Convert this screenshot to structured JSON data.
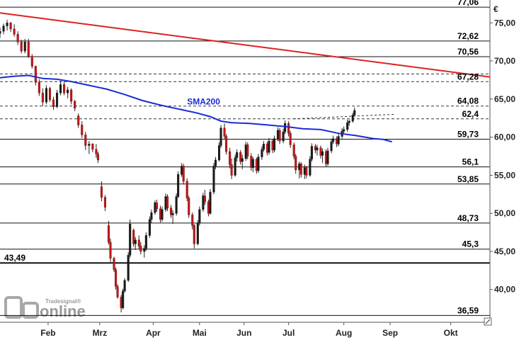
{
  "chart_data": {
    "type": "candlestick",
    "currency_label": "€",
    "y_axis": {
      "range": [
        35.7,
        78.0
      ],
      "ticks": [
        "75,00",
        "70,00",
        "65,00",
        "60,00",
        "55,00",
        "50,00",
        "45,00",
        "40,00"
      ],
      "tick_values": [
        75,
        70,
        65,
        60,
        55,
        50,
        45,
        40
      ],
      "side": "right"
    },
    "x_axis": {
      "range": [
        0,
        275
      ],
      "ticks": [
        "Feb",
        "Mrz",
        "Apr",
        "Mai",
        "Jun",
        "Jul",
        "Aug",
        "Sep",
        "Okt"
      ],
      "tick_positions": [
        27,
        56,
        86,
        112,
        137,
        162,
        193,
        219,
        253
      ]
    },
    "levels": [
      {
        "value": 77.06,
        "label": "77,06",
        "style": "solid"
      },
      {
        "value": 72.62,
        "label": "72,62",
        "style": "solid"
      },
      {
        "value": 70.56,
        "label": "70,56",
        "style": "solid"
      },
      {
        "value": 67.28,
        "label": "67,28",
        "style": "dashed"
      },
      {
        "value": 64.08,
        "label": "64,08",
        "style": "dashed"
      },
      {
        "value": 62.4,
        "label": "62,4",
        "style": "dashed"
      },
      {
        "value": 59.73,
        "label": "59,73",
        "style": "solid"
      },
      {
        "value": 56.1,
        "label": "56,1",
        "style": "solid"
      },
      {
        "value": 53.85,
        "label": "53,85",
        "style": "solid"
      },
      {
        "value": 48.73,
        "label": "48,73",
        "style": "solid"
      },
      {
        "value": 45.3,
        "label": "45,3",
        "style": "solid"
      },
      {
        "value": 43.49,
        "label": "43,49",
        "style": "bold"
      },
      {
        "value": 36.59,
        "label": "36,59",
        "style": "solid"
      }
    ],
    "trendline": {
      "color": "#e02020",
      "points": [
        [
          0,
          76.3
        ],
        [
          275,
          67.9
        ]
      ]
    },
    "upper_dashed_line": {
      "points": [
        [
          0,
          68.3
        ],
        [
          275,
          68.3
        ]
      ]
    },
    "projection_line": {
      "points": [
        [
          165,
          62.4
        ],
        [
          222,
          63.0
        ]
      ]
    },
    "sma200": {
      "name": "SMA200",
      "color": "#1a2bd6",
      "label_at": [
        105,
        64.3
      ],
      "points": [
        [
          0,
          67.8
        ],
        [
          8,
          68.0
        ],
        [
          16,
          68.1
        ],
        [
          24,
          67.7
        ],
        [
          32,
          67.6
        ],
        [
          40,
          67.3
        ],
        [
          50,
          66.8
        ],
        [
          60,
          66.3
        ],
        [
          70,
          65.6
        ],
        [
          80,
          64.8
        ],
        [
          90,
          64.2
        ],
        [
          100,
          63.7
        ],
        [
          110,
          63.2
        ],
        [
          118,
          62.7
        ],
        [
          124,
          62.1
        ],
        [
          130,
          61.9
        ],
        [
          140,
          61.8
        ],
        [
          150,
          61.6
        ],
        [
          160,
          61.4
        ],
        [
          170,
          61.1
        ],
        [
          180,
          61.0
        ],
        [
          190,
          60.5
        ],
        [
          200,
          60.2
        ],
        [
          210,
          59.8
        ],
        [
          215,
          59.7
        ],
        [
          220,
          59.4
        ]
      ]
    },
    "candles": [
      [
        0,
        73.6,
        74.4,
        73.0,
        73.9
      ],
      [
        2,
        73.9,
        74.9,
        73.5,
        74.6
      ],
      [
        4,
        74.6,
        75.4,
        74.0,
        75.0
      ],
      [
        6,
        75.0,
        75.1,
        73.8,
        74.2
      ],
      [
        8,
        74.2,
        74.8,
        73.2,
        73.5
      ],
      [
        10,
        73.5,
        73.9,
        72.1,
        72.5
      ],
      [
        12,
        72.5,
        72.8,
        71.0,
        71.3
      ],
      [
        14,
        71.3,
        72.9,
        71.0,
        72.5
      ],
      [
        16,
        72.5,
        72.9,
        70.4,
        70.6
      ],
      [
        18,
        70.6,
        70.9,
        69.0,
        69.3
      ],
      [
        20,
        69.3,
        69.4,
        66.8,
        67.2
      ],
      [
        22,
        67.2,
        67.6,
        65.4,
        65.8
      ],
      [
        24,
        65.8,
        66.4,
        64.1,
        64.6
      ],
      [
        26,
        64.6,
        66.8,
        64.3,
        66.4
      ],
      [
        28,
        66.4,
        66.6,
        64.6,
        64.9
      ],
      [
        30,
        64.9,
        65.3,
        63.6,
        64.0
      ],
      [
        32,
        64.0,
        66.2,
        63.8,
        65.8
      ],
      [
        34,
        65.8,
        67.4,
        65.5,
        66.9
      ],
      [
        36,
        66.9,
        67.3,
        65.5,
        65.8
      ],
      [
        38,
        65.8,
        66.6,
        65.1,
        66.2
      ],
      [
        40,
        66.2,
        66.4,
        64.3,
        64.7
      ],
      [
        42,
        64.7,
        64.9,
        63.4,
        63.8
      ],
      [
        44,
        62.8,
        63.1,
        61.2,
        61.6
      ],
      [
        46,
        61.6,
        62.1,
        59.9,
        60.3
      ],
      [
        48,
        60.3,
        60.7,
        58.3,
        58.9
      ],
      [
        50,
        58.9,
        59.5,
        57.8,
        59.1
      ],
      [
        52,
        59.1,
        59.2,
        58.0,
        58.4
      ],
      [
        54,
        58.4,
        59.1,
        57.3,
        57.8
      ],
      [
        55,
        57.8,
        58.1,
        56.6,
        57.0
      ],
      [
        57,
        53.5,
        54.2,
        51.6,
        52.1
      ],
      [
        59,
        52.1,
        52.4,
        50.3,
        50.8
      ],
      [
        61,
        48.4,
        49.0,
        45.9,
        46.2
      ],
      [
        62,
        46.2,
        46.7,
        43.6,
        44.1
      ],
      [
        64,
        44.1,
        44.3,
        42.3,
        42.6
      ],
      [
        65,
        42.6,
        42.9,
        40.0,
        40.4
      ],
      [
        66,
        40.4,
        40.7,
        38.8,
        39.0
      ],
      [
        68,
        39.0,
        39.3,
        37.0,
        37.6
      ],
      [
        69,
        37.6,
        40.1,
        37.4,
        39.8
      ],
      [
        70,
        39.8,
        41.5,
        39.6,
        41.2
      ],
      [
        72,
        41.2,
        44.9,
        41.0,
        44.5
      ],
      [
        73,
        44.5,
        49.2,
        44.2,
        48.6
      ],
      [
        75,
        47.8,
        48.0,
        45.6,
        46.0
      ],
      [
        76,
        46.0,
        46.9,
        45.2,
        46.5
      ],
      [
        78,
        46.5,
        47.1,
        45.3,
        45.7
      ],
      [
        79,
        45.7,
        46.2,
        44.6,
        45.0
      ],
      [
        81,
        45.0,
        45.8,
        44.2,
        45.4
      ],
      [
        82,
        45.4,
        47.5,
        45.1,
        47.1
      ],
      [
        84,
        47.1,
        49.6,
        46.8,
        49.2
      ],
      [
        85,
        49.2,
        50.5,
        48.7,
        50.1
      ],
      [
        87,
        50.1,
        51.7,
        49.8,
        51.4
      ],
      [
        88,
        51.4,
        51.8,
        50.2,
        50.6
      ],
      [
        90,
        50.6,
        51.0,
        48.8,
        49.2
      ],
      [
        91,
        49.2,
        50.9,
        48.9,
        50.5
      ],
      [
        93,
        50.5,
        52.6,
        50.2,
        52.2
      ],
      [
        94,
        52.2,
        52.5,
        50.3,
        50.7
      ],
      [
        96,
        50.7,
        51.1,
        49.4,
        49.8
      ],
      [
        97,
        49.8,
        50.4,
        48.6,
        50.0
      ],
      [
        99,
        50.0,
        52.6,
        49.7,
        52.2
      ],
      [
        100,
        52.2,
        55.5,
        52.0,
        55.1
      ],
      [
        102,
        55.1,
        56.6,
        54.8,
        56.2
      ],
      [
        103,
        56.2,
        56.5,
        53.8,
        54.2
      ],
      [
        105,
        54.2,
        54.6,
        51.6,
        52.0
      ],
      [
        106,
        52.0,
        52.3,
        49.4,
        49.8
      ],
      [
        108,
        49.8,
        50.1,
        47.9,
        48.4
      ],
      [
        109,
        48.4,
        48.6,
        45.4,
        46.0
      ],
      [
        111,
        46.0,
        49.1,
        45.8,
        48.7
      ],
      [
        112,
        48.7,
        50.9,
        48.4,
        50.5
      ],
      [
        114,
        50.5,
        52.7,
        50.2,
        52.3
      ],
      [
        115,
        52.3,
        53.1,
        51.1,
        51.5
      ],
      [
        117,
        51.5,
        51.8,
        49.6,
        50.0
      ],
      [
        118,
        50.0,
        53.2,
        49.8,
        52.8
      ],
      [
        120,
        52.8,
        56.6,
        52.5,
        56.2
      ],
      [
        121,
        56.2,
        57.4,
        55.8,
        57.0
      ],
      [
        123,
        57.0,
        59.3,
        56.8,
        58.9
      ],
      [
        124,
        58.9,
        61.6,
        58.6,
        61.2
      ],
      [
        126,
        61.2,
        61.8,
        59.7,
        60.1
      ],
      [
        127,
        60.1,
        60.4,
        57.7,
        58.1
      ],
      [
        129,
        58.1,
        58.6,
        55.9,
        56.4
      ],
      [
        130,
        56.4,
        57.2,
        54.5,
        55.0
      ],
      [
        132,
        55.0,
        57.7,
        54.8,
        57.3
      ],
      [
        133,
        57.3,
        58.4,
        56.8,
        58.0
      ],
      [
        135,
        58.0,
        58.3,
        56.4,
        56.8
      ],
      [
        136,
        56.8,
        57.7,
        55.8,
        57.2
      ],
      [
        138,
        57.2,
        59.4,
        56.9,
        59.0
      ],
      [
        139,
        59.0,
        59.3,
        57.1,
        57.5
      ],
      [
        141,
        57.5,
        57.9,
        55.6,
        56.0
      ],
      [
        142,
        56.0,
        57.4,
        55.4,
        57.1
      ],
      [
        144,
        57.1,
        57.3,
        55.2,
        55.6
      ],
      [
        145,
        55.6,
        57.8,
        55.3,
        57.4
      ],
      [
        147,
        57.4,
        58.8,
        57.0,
        58.4
      ],
      [
        148,
        58.4,
        59.5,
        58.1,
        59.1
      ],
      [
        150,
        59.1,
        59.4,
        57.6,
        58.0
      ],
      [
        151,
        58.0,
        59.9,
        57.7,
        59.5
      ],
      [
        153,
        59.5,
        59.8,
        57.9,
        58.3
      ],
      [
        154,
        58.3,
        60.2,
        58.0,
        59.8
      ],
      [
        156,
        59.8,
        61.3,
        59.5,
        60.9
      ],
      [
        157,
        60.9,
        61.2,
        59.1,
        59.5
      ],
      [
        159,
        59.5,
        61.1,
        59.2,
        60.7
      ],
      [
        160,
        60.7,
        62.2,
        60.4,
        61.8
      ],
      [
        162,
        61.8,
        62.1,
        60.1,
        60.5
      ],
      [
        163,
        60.5,
        60.8,
        58.6,
        59.0
      ],
      [
        165,
        59.0,
        59.3,
        57.1,
        57.5
      ],
      [
        166,
        57.5,
        57.8,
        55.2,
        55.7
      ],
      [
        168,
        55.7,
        56.8,
        54.6,
        56.5
      ],
      [
        169,
        56.5,
        56.7,
        54.7,
        55.1
      ],
      [
        171,
        55.1,
        56.4,
        54.5,
        56.0
      ],
      [
        172,
        56.0,
        56.2,
        54.6,
        55.0
      ],
      [
        174,
        55.0,
        57.5,
        54.8,
        57.1
      ],
      [
        175,
        57.1,
        59.2,
        56.8,
        58.8
      ],
      [
        177,
        58.8,
        59.1,
        57.9,
        58.3
      ],
      [
        178,
        58.3,
        59.0,
        57.6,
        58.6
      ],
      [
        180,
        58.6,
        58.9,
        57.2,
        57.6
      ],
      [
        181,
        57.6,
        58.5,
        56.6,
        58.1
      ],
      [
        183,
        58.1,
        58.4,
        56.1,
        56.5
      ],
      [
        184,
        56.5,
        58.6,
        56.2,
        58.2
      ],
      [
        186,
        58.2,
        59.8,
        57.9,
        59.4
      ],
      [
        187,
        59.4,
        60.2,
        59.1,
        59.8
      ],
      [
        189,
        59.8,
        60.1,
        58.7,
        59.1
      ],
      [
        190,
        59.1,
        60.5,
        58.8,
        60.1
      ],
      [
        192,
        60.1,
        61.2,
        59.8,
        60.8
      ],
      [
        193,
        60.8,
        61.4,
        60.5,
        61.0
      ],
      [
        195,
        61.0,
        62.3,
        60.7,
        61.9
      ],
      [
        196,
        61.9,
        62.3,
        61.5,
        62.1
      ],
      [
        198,
        62.1,
        63.2,
        61.9,
        62.9
      ],
      [
        199,
        62.9,
        63.9,
        62.7,
        63.5
      ]
    ]
  },
  "watermark": {
    "brand_small": "Tradesignal®",
    "brand_large": "online"
  }
}
